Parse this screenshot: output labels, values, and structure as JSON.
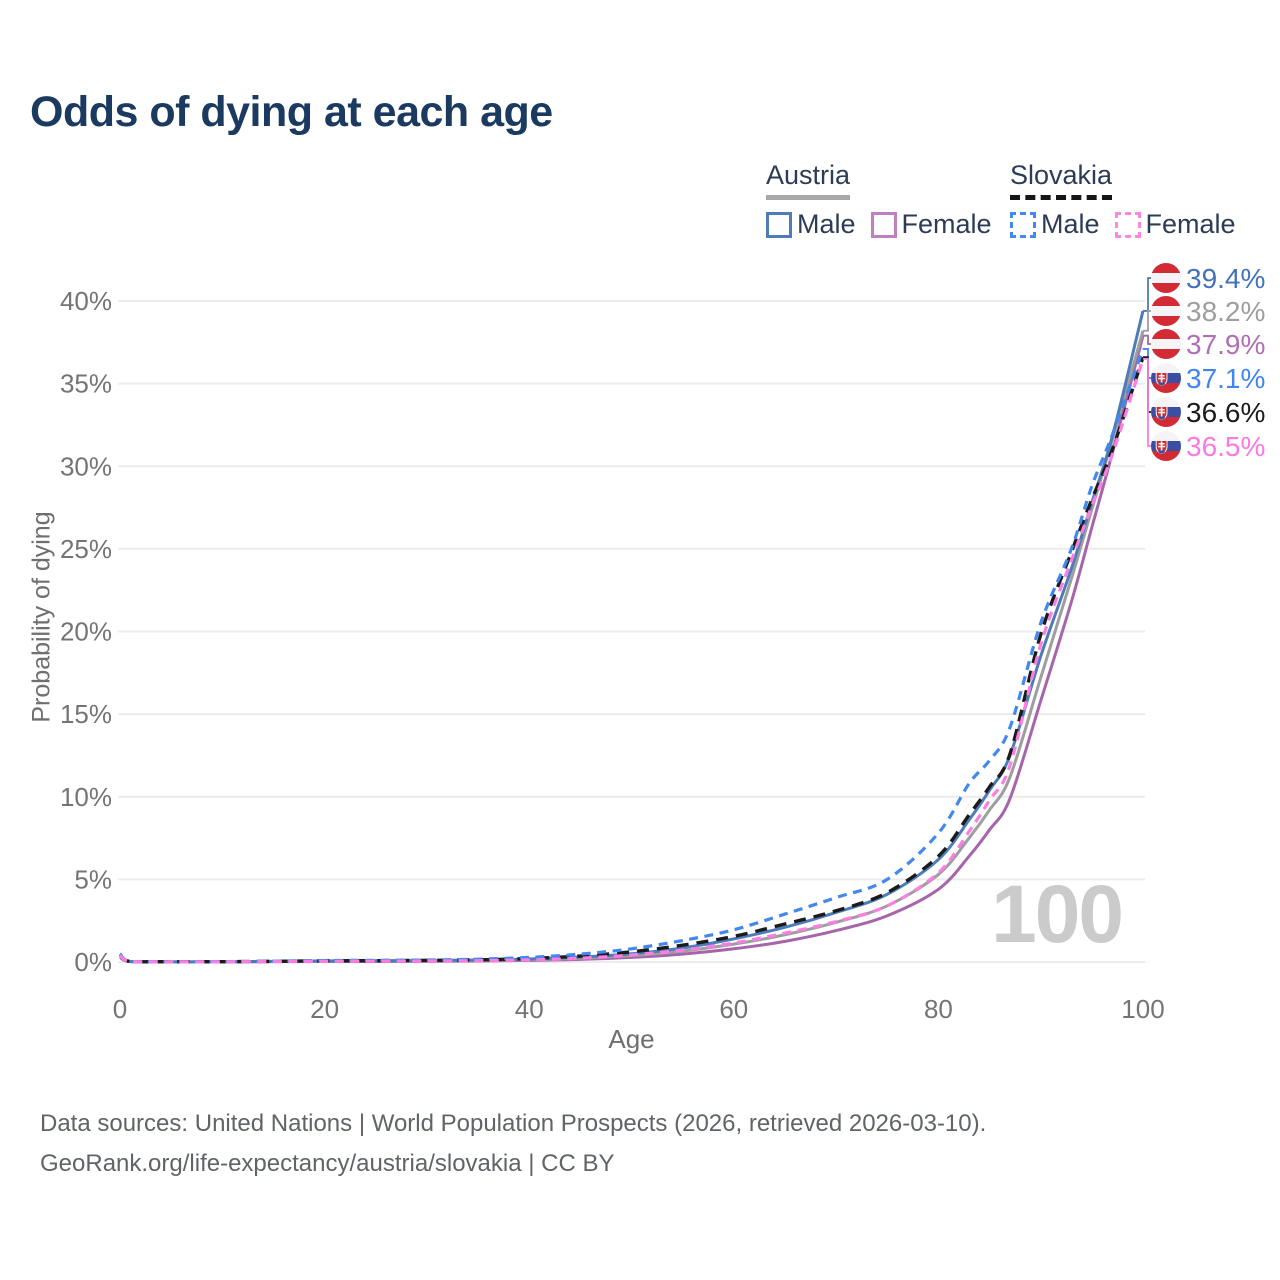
{
  "title": "Odds of dying at each age",
  "legend": {
    "groups": [
      {
        "label": "Austria",
        "line_style": "solid",
        "line_color": "#a8a8a8",
        "items": [
          {
            "label": "Male",
            "box_color": "#4d7db8",
            "box_style": "solid"
          },
          {
            "label": "Female",
            "box_color": "#c07fc0",
            "box_style": "solid"
          }
        ]
      },
      {
        "label": "Slovakia",
        "line_style": "dashed",
        "line_color": "#161616",
        "items": [
          {
            "label": "Male",
            "box_color": "#4288f0",
            "box_style": "dashed"
          },
          {
            "label": "Female",
            "box_color": "#ff86e3",
            "box_style": "dashed"
          }
        ]
      }
    ]
  },
  "chart_data": {
    "type": "line",
    "title": "Odds of dying at each age",
    "xlabel": "Age",
    "ylabel": "Probability of dying",
    "xlim": [
      0,
      100
    ],
    "ylim": [
      0,
      40
    ],
    "grid": true,
    "x_ticks": {
      "values": [
        0,
        20,
        40,
        60,
        80,
        100
      ],
      "labels": [
        "0",
        "20",
        "40",
        "60",
        "80",
        "100"
      ]
    },
    "y_ticks": {
      "values": [
        0,
        5,
        10,
        15,
        20,
        25,
        30,
        35,
        40
      ],
      "labels": [
        "0%",
        "5%",
        "10%",
        "15%",
        "20%",
        "25%",
        "30%",
        "35%",
        "40%"
      ]
    },
    "age_watermark": "100",
    "ages": [
      0,
      1,
      5,
      10,
      15,
      20,
      25,
      30,
      35,
      40,
      45,
      50,
      55,
      60,
      65,
      70,
      75,
      80,
      83,
      85,
      87,
      90,
      93,
      95,
      97,
      100
    ],
    "series": [
      {
        "name": "Austria Female",
        "country": "Austria",
        "sex": "Female",
        "flag": "austria",
        "color": "#a665aa",
        "label_color": "#b06fb5",
        "dash": "",
        "end_label": "37.9%",
        "values": [
          0.28,
          0.02,
          0.01,
          0.01,
          0.02,
          0.03,
          0.03,
          0.04,
          0.06,
          0.1,
          0.16,
          0.28,
          0.48,
          0.8,
          1.25,
          1.9,
          2.8,
          4.4,
          6.4,
          8.0,
          9.9,
          15.8,
          21.8,
          26.3,
          30.8,
          37.9
        ]
      },
      {
        "name": "Austria Overall",
        "country": "Austria",
        "sex": "All",
        "flag": "austria",
        "color": "#9e9e9e",
        "label_color": "#9e9e9e",
        "dash": "",
        "end_label": "38.2%",
        "values": [
          0.32,
          0.03,
          0.01,
          0.01,
          0.03,
          0.05,
          0.06,
          0.07,
          0.09,
          0.14,
          0.23,
          0.39,
          0.66,
          1.08,
          1.65,
          2.4,
          3.4,
          5.3,
          7.5,
          9.2,
          11.2,
          17.2,
          23.2,
          27.4,
          31.6,
          38.2
        ]
      },
      {
        "name": "Austria Male",
        "country": "Austria",
        "sex": "Male",
        "flag": "austria",
        "color": "#4d7db8",
        "label_color": "#4173bd",
        "dash": "",
        "end_label": "39.4%",
        "values": [
          0.35,
          0.03,
          0.01,
          0.01,
          0.04,
          0.07,
          0.08,
          0.09,
          0.12,
          0.18,
          0.3,
          0.5,
          0.85,
          1.4,
          2.1,
          3.0,
          4.1,
          6.2,
          8.6,
          10.4,
          12.5,
          18.5,
          23.8,
          27.8,
          31.8,
          39.4
        ]
      },
      {
        "name": "Slovakia Overall",
        "country": "Slovakia",
        "sex": "All",
        "flag": "slovakia",
        "color": "#1b1b1b",
        "label_color": "#1b1b1b",
        "dash": "12 8",
        "end_label": "36.6%",
        "values": [
          0.45,
          0.03,
          0.02,
          0.02,
          0.04,
          0.07,
          0.08,
          0.1,
          0.13,
          0.21,
          0.36,
          0.62,
          1.02,
          1.55,
          2.3,
          3.1,
          4.2,
          6.4,
          8.9,
          10.6,
          12.6,
          19.8,
          24.8,
          28.0,
          31.0,
          36.6
        ]
      },
      {
        "name": "Slovakia Male",
        "country": "Slovakia",
        "sex": "Male",
        "flag": "slovakia",
        "color": "#4288f0",
        "label_color": "#3f86f2",
        "dash": "9 6.5",
        "end_label": "37.1%",
        "values": [
          0.5,
          0.04,
          0.02,
          0.02,
          0.05,
          0.09,
          0.1,
          0.12,
          0.17,
          0.28,
          0.48,
          0.8,
          1.3,
          1.95,
          2.9,
          3.9,
          5.0,
          7.8,
          10.8,
          12.2,
          14.2,
          20.5,
          25.0,
          28.8,
          31.9,
          37.1
        ]
      },
      {
        "name": "Slovakia Female",
        "country": "Slovakia",
        "sex": "Female",
        "flag": "slovakia",
        "color": "#fb7ee2",
        "label_color": "#ff78e2",
        "dash": "9 6.5",
        "end_label": "36.5%",
        "values": [
          0.4,
          0.03,
          0.01,
          0.01,
          0.03,
          0.04,
          0.05,
          0.06,
          0.08,
          0.13,
          0.23,
          0.42,
          0.72,
          1.15,
          1.75,
          2.45,
          3.4,
          5.4,
          7.9,
          9.8,
          11.9,
          19.2,
          24.3,
          27.6,
          30.7,
          36.5
        ]
      }
    ],
    "flag_colors": {
      "austria": [
        "#d22b35",
        "#f4f4f6",
        "#d22b35"
      ],
      "slovakia": [
        "#f4f4f6",
        "#3a4fa4",
        "#d22b35"
      ]
    }
  },
  "footer": {
    "line1": "Data sources: United Nations | World Population Prospects (2026, retrieved 2026-03-10).",
    "line2": "GeoRank.org/life-expectancy/austria/slovakia | CC BY"
  }
}
